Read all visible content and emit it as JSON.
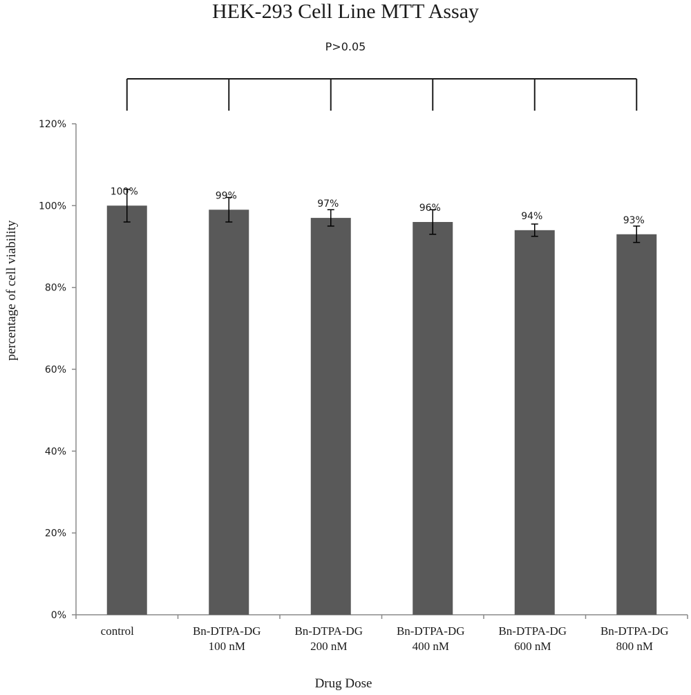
{
  "chart_data": {
    "type": "bar",
    "title": "HEK-293 Cell Line MTT Assay",
    "annotation": "P>0.05",
    "xlabel": "Drug Dose",
    "ylabel": "percentage of cell viability",
    "categories": [
      [
        "control"
      ],
      [
        "Bn-DTPA-DG",
        "100 nM"
      ],
      [
        "Bn-DTPA-DG",
        "200 nM"
      ],
      [
        "Bn-DTPA-DG",
        "400 nM"
      ],
      [
        "Bn-DTPA-DG",
        "600 nM"
      ],
      [
        "Bn-DTPA-DG",
        "800 nM"
      ]
    ],
    "values": [
      100,
      99,
      97,
      96,
      94,
      93
    ],
    "data_labels": [
      "100%",
      "99%",
      "97%",
      "96%",
      "94%",
      "93%"
    ],
    "error": [
      4,
      3,
      2,
      3,
      1.5,
      2
    ],
    "ylim": [
      0,
      120
    ],
    "yticks": [
      0,
      20,
      40,
      60,
      80,
      100,
      120
    ],
    "ytick_labels": [
      "0%",
      "20%",
      "40%",
      "60%",
      "80%",
      "100%",
      "120%"
    ],
    "bar_color": "#595959",
    "grid": false,
    "legend": "none"
  }
}
